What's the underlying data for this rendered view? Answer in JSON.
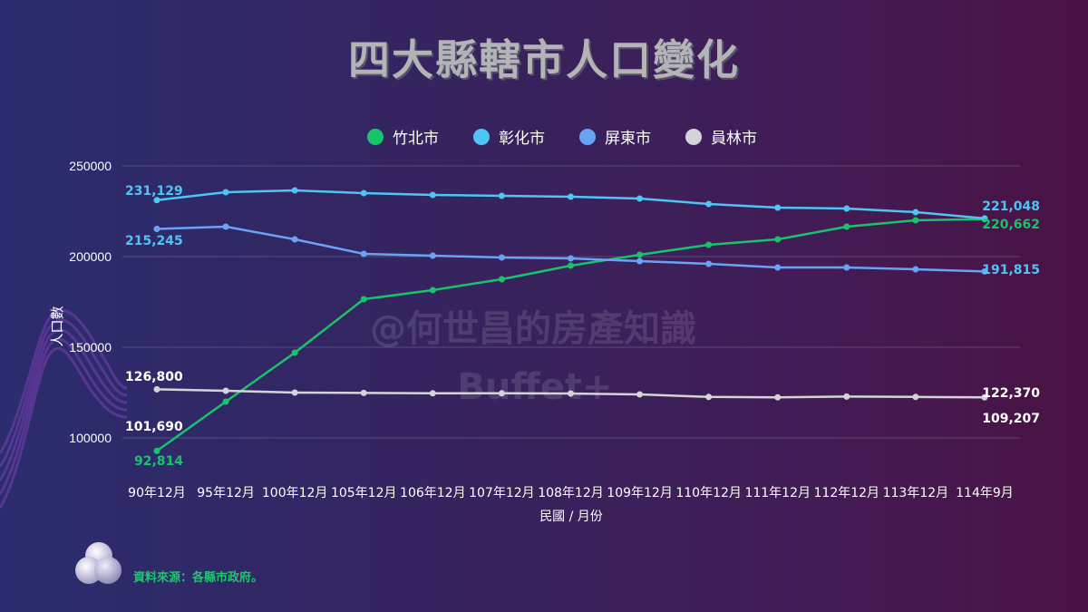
{
  "title": "四大縣轄市人口變化",
  "legend": [
    {
      "label": "竹北市",
      "color": "#18c46a"
    },
    {
      "label": "彰化市",
      "color": "#4fc4f5"
    },
    {
      "label": "屏東市",
      "color": "#6aa3f5"
    },
    {
      "label": "員林市",
      "color": "#d4d4d8"
    }
  ],
  "watermark": {
    "line1": "@何世昌的房產知識",
    "line2": "Buffet+"
  },
  "source": "資料來源：各縣市政府。",
  "chart_data": {
    "type": "line",
    "title": "四大縣轄市人口變化",
    "xlabel": "民國 / 月份",
    "ylabel": "人口數",
    "ylim": [
      90000,
      250000
    ],
    "yticks": [
      100000,
      150000,
      200000,
      250000
    ],
    "grid": true,
    "legend_position": "top",
    "categories": [
      "90年12月",
      "95年12月",
      "100年12月",
      "105年12月",
      "106年12月",
      "107年12月",
      "108年12月",
      "109年12月",
      "110年12月",
      "111年12月",
      "112年12月",
      "113年12月",
      "114年9月"
    ],
    "series": [
      {
        "name": "竹北市",
        "color": "#18c46a",
        "values": [
          92814,
          120000,
          147000,
          176500,
          181500,
          187500,
          195000,
          201000,
          206500,
          209500,
          216500,
          220000,
          220662
        ]
      },
      {
        "name": "彰化市",
        "color": "#4fc4f5",
        "values": [
          231129,
          235500,
          236500,
          235000,
          234000,
          233500,
          233000,
          232000,
          229000,
          227000,
          226500,
          224500,
          221048
        ]
      },
      {
        "name": "屏東市",
        "color": "#6aa3f5",
        "values": [
          215245,
          216500,
          209500,
          201500,
          200500,
          199500,
          199000,
          197500,
          196000,
          194000,
          194000,
          193000,
          191815
        ]
      },
      {
        "name": "員林市",
        "color": "#d4d4d8",
        "values": [
          126800,
          126000,
          125000,
          124800,
          124600,
          124600,
          124500,
          124000,
          122600,
          122400,
          122800,
          122600,
          122370
        ]
      }
    ],
    "annotations": [
      {
        "text": "231,129",
        "series": "彰化市",
        "position": "start"
      },
      {
        "text": "215,245",
        "series": "屏東市",
        "position": "start"
      },
      {
        "text": "126,800",
        "series": "員林市",
        "position": "start"
      },
      {
        "text": "101,690",
        "series": "員林市",
        "position": "start-lower"
      },
      {
        "text": "92,814",
        "series": "竹北市",
        "position": "start"
      },
      {
        "text": "221,048",
        "series": "彰化市",
        "position": "end"
      },
      {
        "text": "220,662",
        "series": "竹北市",
        "position": "end"
      },
      {
        "text": "191,815",
        "series": "屏東市",
        "position": "end"
      },
      {
        "text": "122,370",
        "series": "員林市",
        "position": "end"
      },
      {
        "text": "109,207",
        "series": "員林市",
        "position": "end-lower"
      }
    ]
  }
}
